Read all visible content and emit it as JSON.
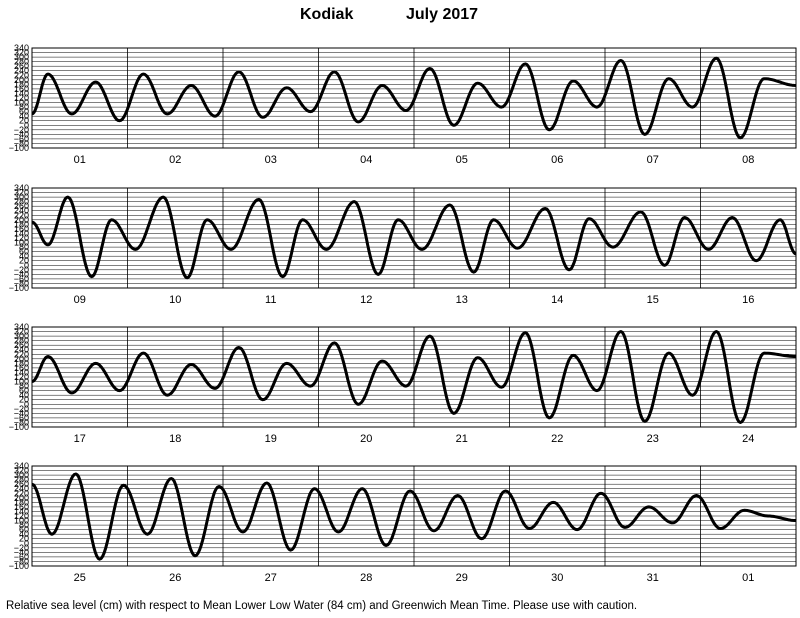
{
  "header": {
    "station": "Kodiak",
    "month": "July  2017"
  },
  "caption": "Relative sea level (cm) with respect to Mean Lower Low Water (84 cm) and Greenwich Mean Time. Please use with caution.",
  "chart_data": [
    {
      "type": "line",
      "y_ticks": [
        340,
        320,
        300,
        280,
        260,
        240,
        220,
        200,
        180,
        160,
        140,
        120,
        100,
        80,
        60,
        40,
        20,
        0,
        -20,
        -40,
        -60,
        -80,
        -100
      ],
      "y_tick_labels": [
        "340",
        "320",
        "300",
        "280",
        "260",
        "240",
        "220",
        "200",
        "180",
        "160",
        "140",
        "120",
        "100",
        "80",
        "60",
        "40",
        "20",
        "0",
        "−20",
        "−40",
        "−60",
        "−80",
        "−100"
      ],
      "ylim": [
        -100,
        340
      ],
      "x_unit": "hours since 00:00 of first day",
      "days": [
        "01",
        "02",
        "03",
        "04",
        "05",
        "06",
        "07",
        "08"
      ],
      "extrema": [
        [
          0,
          50
        ],
        [
          4,
          225
        ],
        [
          10,
          50
        ],
        [
          16,
          190
        ],
        [
          22,
          20
        ],
        [
          28,
          225
        ],
        [
          34,
          50
        ],
        [
          40,
          175
        ],
        [
          46,
          40
        ],
        [
          52,
          235
        ],
        [
          58,
          35
        ],
        [
          64,
          165
        ],
        [
          70,
          60
        ],
        [
          76,
          235
        ],
        [
          82,
          15
        ],
        [
          88,
          175
        ],
        [
          94,
          65
        ],
        [
          100,
          250
        ],
        [
          106,
          0
        ],
        [
          112,
          185
        ],
        [
          118,
          80
        ],
        [
          124,
          270
        ],
        [
          130,
          -20
        ],
        [
          136,
          195
        ],
        [
          142,
          80
        ],
        [
          148,
          285
        ],
        [
          154,
          -40
        ],
        [
          160,
          205
        ],
        [
          166,
          80
        ],
        [
          172,
          295
        ],
        [
          178,
          -55
        ],
        [
          184,
          205
        ],
        [
          192,
          175
        ]
      ]
    },
    {
      "type": "line",
      "y_ticks": [
        340,
        320,
        300,
        280,
        260,
        240,
        220,
        200,
        180,
        160,
        140,
        120,
        100,
        80,
        60,
        40,
        20,
        0,
        -20,
        -40,
        -60,
        -80,
        -100
      ],
      "y_tick_labels": [
        "340",
        "320",
        "300",
        "280",
        "260",
        "240",
        "220",
        "200",
        "180",
        "160",
        "140",
        "120",
        "100",
        "80",
        "60",
        "40",
        "20",
        "0",
        "−20",
        "−40",
        "−60",
        "−80",
        "−100"
      ],
      "ylim": [
        -100,
        340
      ],
      "x_unit": "hours since 00:00 of first day",
      "days": [
        "09",
        "10",
        "11",
        "12",
        "13",
        "14",
        "15",
        "16"
      ],
      "extrema": [
        [
          0,
          190
        ],
        [
          4,
          90
        ],
        [
          9,
          300
        ],
        [
          15,
          -50
        ],
        [
          20,
          200
        ],
        [
          26,
          70
        ],
        [
          33,
          300
        ],
        [
          39,
          -55
        ],
        [
          44,
          200
        ],
        [
          50,
          70
        ],
        [
          57,
          290
        ],
        [
          63,
          -50
        ],
        [
          68,
          200
        ],
        [
          74,
          70
        ],
        [
          81,
          280
        ],
        [
          87,
          -40
        ],
        [
          92,
          200
        ],
        [
          98,
          70
        ],
        [
          105,
          265
        ],
        [
          111,
          -30
        ],
        [
          116,
          200
        ],
        [
          122,
          75
        ],
        [
          129,
          250
        ],
        [
          135,
          -20
        ],
        [
          140,
          205
        ],
        [
          146,
          80
        ],
        [
          153,
          235
        ],
        [
          159,
          0
        ],
        [
          164,
          210
        ],
        [
          170,
          70
        ],
        [
          176,
          210
        ],
        [
          182,
          20
        ],
        [
          188,
          200
        ],
        [
          192,
          50
        ]
      ]
    },
    {
      "type": "line",
      "y_ticks": [
        340,
        320,
        300,
        280,
        260,
        240,
        220,
        200,
        180,
        160,
        140,
        120,
        100,
        80,
        60,
        40,
        20,
        0,
        -20,
        -40,
        -60,
        -80,
        -100
      ],
      "y_tick_labels": [
        "340",
        "320",
        "300",
        "280",
        "260",
        "240",
        "220",
        "200",
        "180",
        "160",
        "140",
        "120",
        "100",
        "80",
        "60",
        "40",
        "20",
        "0",
        "−20",
        "−40",
        "−60",
        "−80",
        "−100"
      ],
      "ylim": [
        -100,
        340
      ],
      "x_unit": "hours since 00:00 of first day",
      "days": [
        "17",
        "18",
        "19",
        "20",
        "21",
        "22",
        "23",
        "24"
      ],
      "extrema": [
        [
          0,
          100
        ],
        [
          4,
          210
        ],
        [
          10,
          50
        ],
        [
          16,
          180
        ],
        [
          22,
          60
        ],
        [
          28,
          225
        ],
        [
          34,
          40
        ],
        [
          40,
          175
        ],
        [
          46,
          70
        ],
        [
          52,
          250
        ],
        [
          58,
          20
        ],
        [
          64,
          180
        ],
        [
          70,
          80
        ],
        [
          76,
          270
        ],
        [
          82,
          0
        ],
        [
          88,
          190
        ],
        [
          94,
          80
        ],
        [
          100,
          300
        ],
        [
          106,
          -40
        ],
        [
          112,
          205
        ],
        [
          118,
          75
        ],
        [
          124,
          315
        ],
        [
          130,
          -60
        ],
        [
          136,
          215
        ],
        [
          142,
          60
        ],
        [
          148,
          320
        ],
        [
          154,
          -75
        ],
        [
          160,
          225
        ],
        [
          166,
          40
        ],
        [
          172,
          320
        ],
        [
          178,
          -80
        ],
        [
          184,
          225
        ],
        [
          192,
          210
        ]
      ]
    },
    {
      "type": "line",
      "y_ticks": [
        340,
        320,
        300,
        280,
        260,
        240,
        220,
        200,
        180,
        160,
        140,
        120,
        100,
        80,
        60,
        40,
        20,
        0,
        -20,
        -40,
        -60,
        -80,
        -100
      ],
      "y_tick_labels": [
        "340",
        "320",
        "300",
        "280",
        "260",
        "240",
        "220",
        "200",
        "180",
        "160",
        "140",
        "120",
        "100",
        "80",
        "60",
        "40",
        "20",
        "0",
        "−20",
        "−40",
        "−60",
        "−80",
        "−100"
      ],
      "ylim": [
        -100,
        340
      ],
      "x_unit": "hours since 00:00 of first day",
      "days": [
        "25",
        "26",
        "27",
        "28",
        "29",
        "30",
        "31",
        "01"
      ],
      "extrema": [
        [
          0,
          260
        ],
        [
          5,
          40
        ],
        [
          11,
          305
        ],
        [
          17,
          -70
        ],
        [
          23,
          255
        ],
        [
          29,
          40
        ],
        [
          35,
          285
        ],
        [
          41,
          -55
        ],
        [
          47,
          250
        ],
        [
          53,
          50
        ],
        [
          59,
          265
        ],
        [
          65,
          -30
        ],
        [
          71,
          240
        ],
        [
          77,
          50
        ],
        [
          83,
          240
        ],
        [
          89,
          -10
        ],
        [
          95,
          230
        ],
        [
          101,
          55
        ],
        [
          107,
          210
        ],
        [
          113,
          20
        ],
        [
          119,
          230
        ],
        [
          125,
          65
        ],
        [
          131,
          180
        ],
        [
          137,
          60
        ],
        [
          143,
          220
        ],
        [
          149,
          70
        ],
        [
          155,
          160
        ],
        [
          161,
          90
        ],
        [
          167,
          210
        ],
        [
          173,
          65
        ],
        [
          179,
          145
        ],
        [
          185,
          120
        ],
        [
          192,
          100
        ]
      ]
    }
  ]
}
